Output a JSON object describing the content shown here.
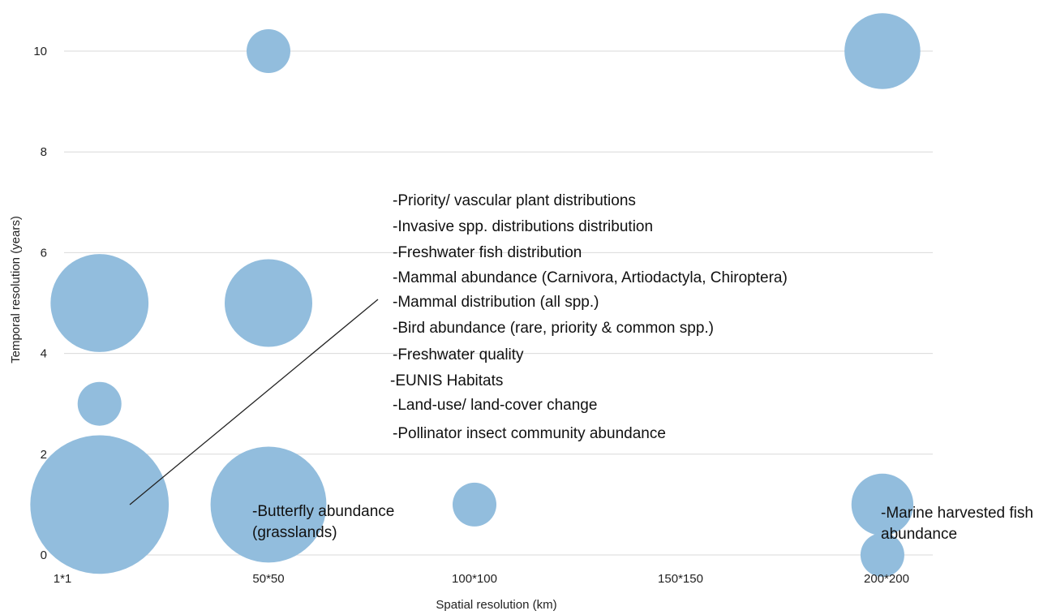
{
  "chart_data": {
    "type": "bubble",
    "xlabel": "Spatial resolution (km)",
    "ylabel": "Temporal resolution (years)",
    "x_ticks": [
      "1*1",
      "50*50",
      "100*100",
      "150*150",
      "200*200"
    ],
    "y_ticks": [
      0,
      2,
      4,
      6,
      8,
      10
    ],
    "xlim": [
      0,
      4.0
    ],
    "ylim": [
      0,
      10
    ],
    "grid": "horizontal",
    "bubble_color": "#92bddd",
    "points": [
      {
        "x": 0.18,
        "y": 1,
        "size": 10
      },
      {
        "x": 0.18,
        "y": 5,
        "size": 5
      },
      {
        "x": 0.18,
        "y": 3,
        "size": 1
      },
      {
        "x": 1.0,
        "y": 10,
        "size": 1
      },
      {
        "x": 1.0,
        "y": 5,
        "size": 4
      },
      {
        "x": 1.0,
        "y": 1,
        "size": 7
      },
      {
        "x": 2.0,
        "y": 1,
        "size": 1
      },
      {
        "x": 3.98,
        "y": 10,
        "size": 3
      },
      {
        "x": 3.98,
        "y": 1,
        "size": 2
      },
      {
        "x": 3.98,
        "y": 0,
        "size": 1
      }
    ],
    "annotations": [
      {
        "lines": [
          "-Priority/ vascular plant distributions",
          "-Invasive spp. distributions distribution",
          "-Freshwater fish distribution",
          "-Mammal abundance (Carnivora, Artiodactyla, Chiroptera)",
          "-Mammal distribution (all spp.)",
          "-Bird abundance (rare, priority & common spp.)",
          "-Freshwater quality",
          "-EUNIS Habitats",
          "-Land-use/ land-cover change",
          "-Pollinator insect community abundance"
        ]
      },
      {
        "lines": [
          "-Butterfly abundance",
          "(grasslands)"
        ]
      },
      {
        "lines": [
          "-Marine harvested fish",
          "abundance"
        ]
      }
    ]
  }
}
